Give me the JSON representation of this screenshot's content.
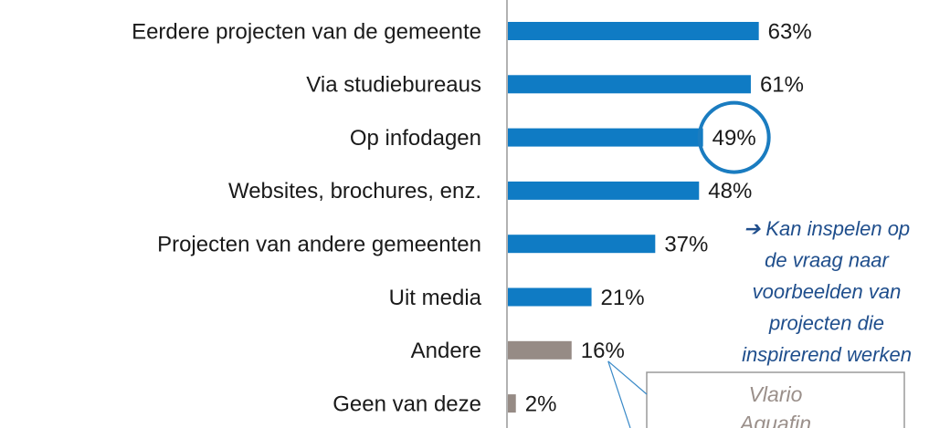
{
  "chart_data": {
    "type": "bar",
    "orientation": "horizontal",
    "categories": [
      "Eerdere projecten van de gemeente",
      "Via studiebureaus",
      "Op infodagen",
      "Websites, brochures, enz.",
      "Projecten van andere gemeenten",
      "Uit media",
      "Andere",
      "Geen van deze"
    ],
    "values": [
      63,
      61,
      49,
      48,
      37,
      21,
      16,
      2
    ],
    "value_labels": [
      "63%",
      "61%",
      "49%",
      "48%",
      "37%",
      "21%",
      "16%",
      "2%"
    ],
    "colors": [
      "#0f7bc4",
      "#0f7bc4",
      "#0f7bc4",
      "#0f7bc4",
      "#0f7bc4",
      "#0f7bc4",
      "#968b85",
      "#968b85"
    ],
    "highlight": 2,
    "annotation": [
      "➔ Kan inspelen op",
      "de vraag naar",
      "voorbeelden van",
      "projecten die",
      "inspirerend werken"
    ],
    "callout": [
      "Vlario",
      "Aquafin"
    ],
    "callout_target": 6
  }
}
